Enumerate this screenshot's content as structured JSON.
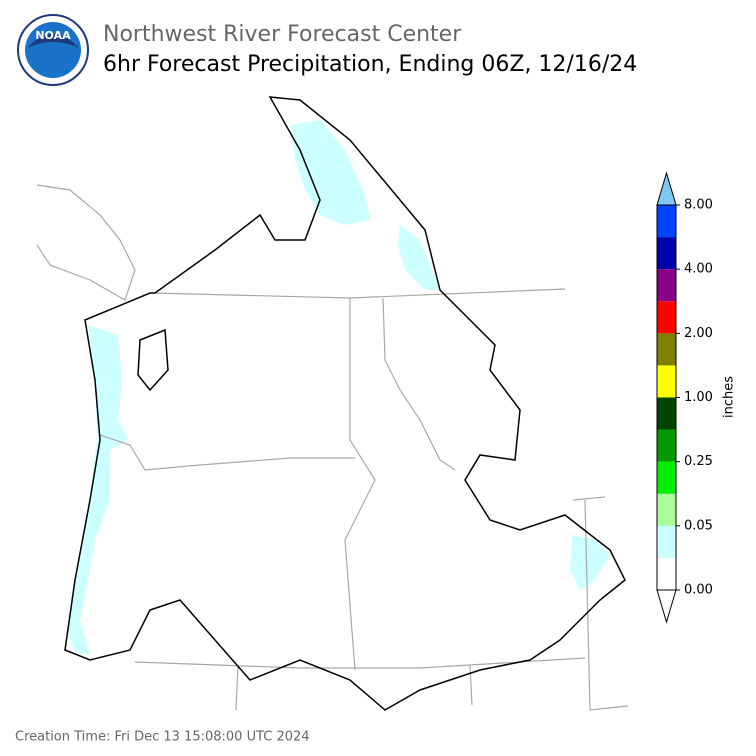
{
  "header": {
    "title": "Northwest River Forecast Center",
    "subtitle": "6hr Forecast Precipitation, Ending 06Z, 12/16/24",
    "logo": "NOAA"
  },
  "colorbar": {
    "label": "inches",
    "ticks": [
      "0.00",
      "0.05",
      "0.25",
      "1.00",
      "2.00",
      "4.00",
      "8.00"
    ],
    "under_color": "#ffffff",
    "over_color": "#7fc8f0",
    "colors": [
      "#ffffff",
      "#ccffff",
      "#aaff99",
      "#00ee00",
      "#009900",
      "#004400",
      "#ffff00",
      "#808000",
      "#ff0000",
      "#880088",
      "#0000aa",
      "#0044ff"
    ]
  },
  "footer": {
    "creation_time": "Creation Time: Fri Dec 13 15:08:00 UTC 2024"
  }
}
